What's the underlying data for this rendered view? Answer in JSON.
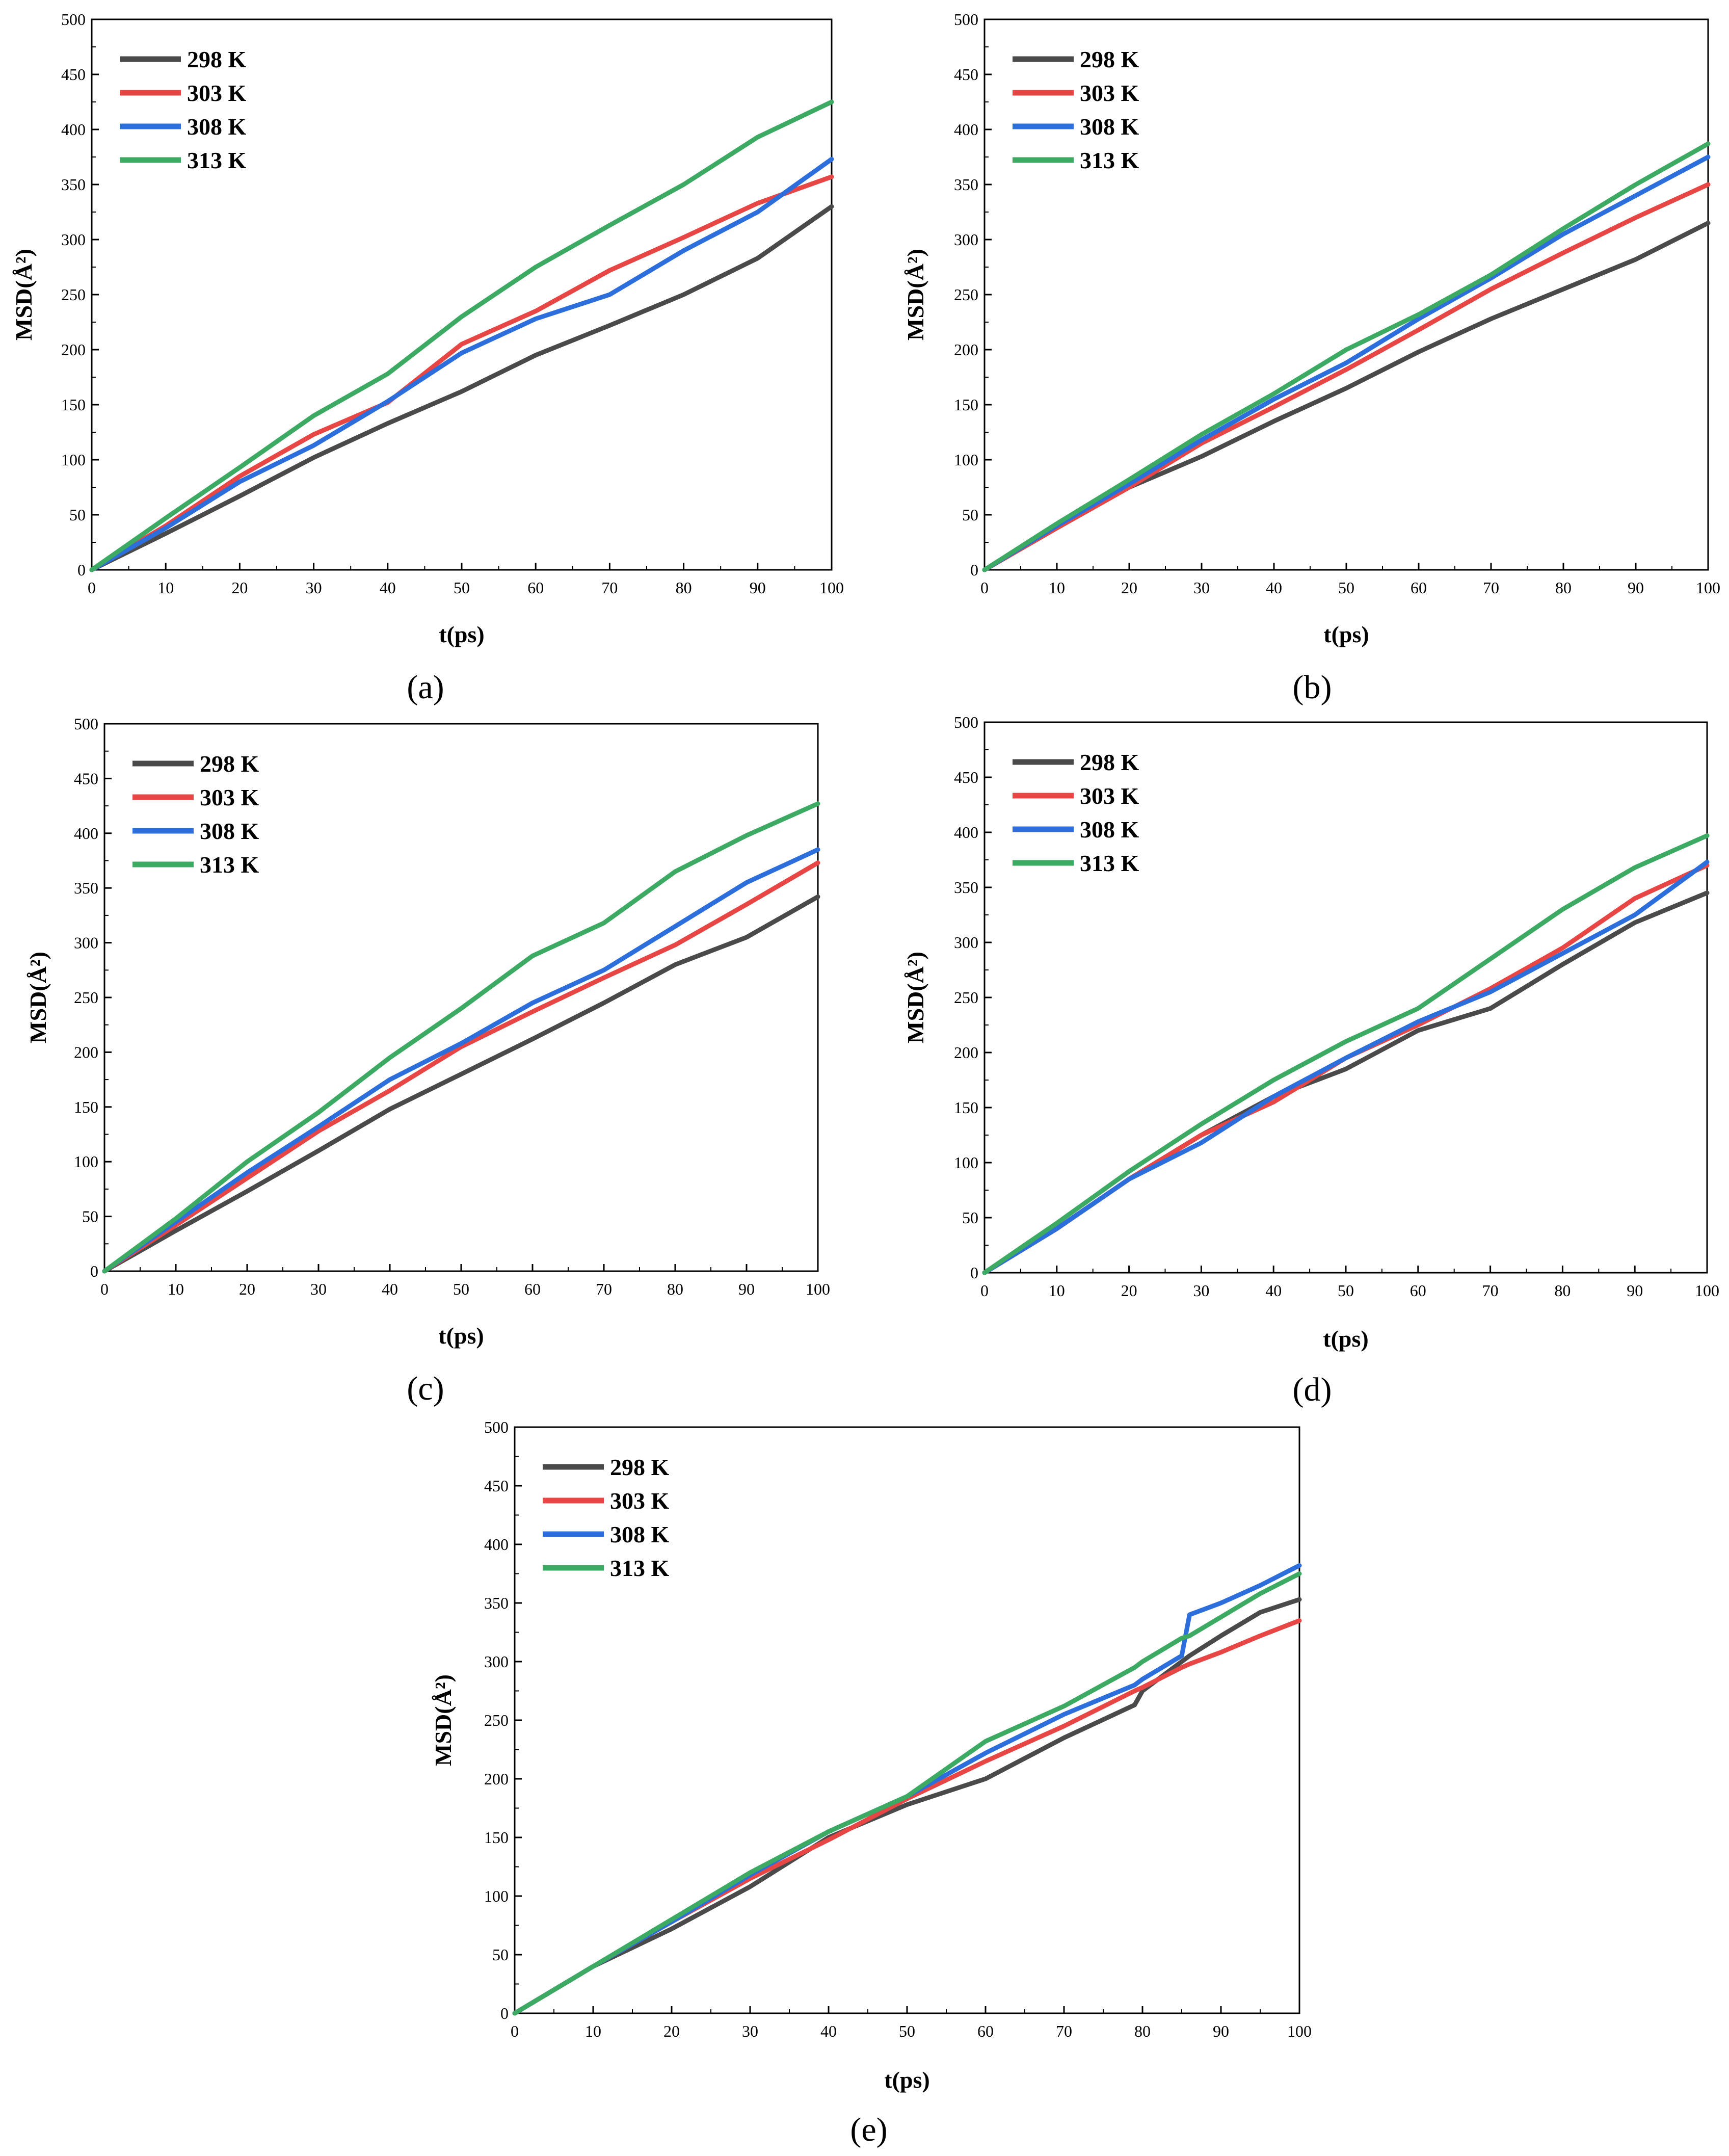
{
  "figure": {
    "series_colors": {
      "298 K": "#4a4a4a",
      "303 K": "#e84545",
      "308 K": "#2c6fdc",
      "313 K": "#3daa63"
    }
  },
  "chart_data": [
    {
      "id": "a",
      "type": "line",
      "panel_label": "(a)",
      "xlabel": "t(ps)",
      "ylabel": "MSD(Å²)",
      "xlim": [
        0,
        100
      ],
      "ylim": [
        0,
        500
      ],
      "xticks": [
        0,
        10,
        20,
        30,
        40,
        50,
        60,
        70,
        80,
        90,
        100
      ],
      "yticks": [
        0,
        50,
        100,
        150,
        200,
        250,
        300,
        350,
        400,
        450,
        500
      ],
      "legend": [
        "298 K",
        "303 K",
        "308 K",
        "313 K"
      ],
      "legend_position": "top-left",
      "x": [
        0,
        10,
        20,
        30,
        40,
        50,
        60,
        70,
        80,
        90,
        100
      ],
      "series": [
        {
          "name": "298 K",
          "values": [
            0,
            33,
            67,
            102,
            133,
            162,
            195,
            222,
            250,
            283,
            330
          ]
        },
        {
          "name": "303 K",
          "values": [
            0,
            40,
            85,
            123,
            152,
            205,
            235,
            272,
            302,
            333,
            357
          ]
        },
        {
          "name": "308 K",
          "values": [
            0,
            38,
            80,
            113,
            153,
            197,
            228,
            250,
            290,
            325,
            373
          ]
        },
        {
          "name": "313 K",
          "values": [
            0,
            47,
            93,
            140,
            178,
            230,
            275,
            313,
            350,
            393,
            425
          ]
        }
      ]
    },
    {
      "id": "b",
      "type": "line",
      "panel_label": "(b)",
      "xlabel": "t(ps)",
      "ylabel": "MSD(Å²)",
      "xlim": [
        0,
        100
      ],
      "ylim": [
        0,
        500
      ],
      "xticks": [
        0,
        10,
        20,
        30,
        40,
        50,
        60,
        70,
        80,
        90,
        100
      ],
      "yticks": [
        0,
        50,
        100,
        150,
        200,
        250,
        300,
        350,
        400,
        450,
        500
      ],
      "legend": [
        "298 K",
        "303 K",
        "308 K",
        "313 K"
      ],
      "legend_position": "top-left",
      "x": [
        0,
        10,
        20,
        30,
        40,
        50,
        60,
        70,
        80,
        90,
        100
      ],
      "series": [
        {
          "name": "298 K",
          "values": [
            0,
            38,
            75,
            103,
            135,
            165,
            198,
            228,
            255,
            282,
            315
          ]
        },
        {
          "name": "303 K",
          "values": [
            0,
            38,
            75,
            115,
            148,
            182,
            218,
            255,
            288,
            320,
            350
          ]
        },
        {
          "name": "308 K",
          "values": [
            0,
            40,
            78,
            118,
            155,
            188,
            228,
            265,
            305,
            340,
            375
          ]
        },
        {
          "name": "313 K",
          "values": [
            0,
            42,
            82,
            123,
            160,
            200,
            232,
            268,
            310,
            350,
            387
          ]
        }
      ]
    },
    {
      "id": "c",
      "type": "line",
      "panel_label": "(c)",
      "xlabel": "t(ps)",
      "ylabel": "MSD(Å²)",
      "xlim": [
        0,
        100
      ],
      "ylim": [
        0,
        500
      ],
      "xticks": [
        0,
        10,
        20,
        30,
        40,
        50,
        60,
        70,
        80,
        90,
        100
      ],
      "yticks": [
        0,
        50,
        100,
        150,
        200,
        250,
        300,
        350,
        400,
        450,
        500
      ],
      "legend": [
        "298 K",
        "303 K",
        "308 K",
        "313 K"
      ],
      "legend_position": "top-left",
      "x": [
        0,
        10,
        20,
        30,
        40,
        50,
        60,
        70,
        80,
        90,
        100
      ],
      "series": [
        {
          "name": "298 K",
          "values": [
            0,
            37,
            73,
            110,
            148,
            180,
            212,
            245,
            280,
            305,
            342
          ]
        },
        {
          "name": "303 K",
          "values": [
            0,
            42,
            85,
            128,
            165,
            205,
            237,
            268,
            298,
            335,
            373
          ]
        },
        {
          "name": "308 K",
          "values": [
            0,
            45,
            90,
            132,
            175,
            208,
            245,
            275,
            315,
            355,
            385
          ]
        },
        {
          "name": "313 K",
          "values": [
            0,
            48,
            100,
            145,
            195,
            240,
            288,
            318,
            365,
            398,
            427
          ]
        }
      ]
    },
    {
      "id": "d",
      "type": "line",
      "panel_label": "(d)",
      "xlabel": "t(ps)",
      "ylabel": "MSD(Å²)",
      "xlim": [
        0,
        100
      ],
      "ylim": [
        0,
        500
      ],
      "xticks": [
        0,
        10,
        20,
        30,
        40,
        50,
        60,
        70,
        80,
        90,
        100
      ],
      "yticks": [
        0,
        50,
        100,
        150,
        200,
        250,
        300,
        350,
        400,
        450,
        500
      ],
      "legend": [
        "298 K",
        "303 K",
        "308 K",
        "313 K"
      ],
      "legend_position": "top-left",
      "x": [
        0,
        10,
        20,
        30,
        40,
        50,
        60,
        70,
        80,
        90,
        100
      ],
      "series": [
        {
          "name": "298 K",
          "values": [
            0,
            40,
            85,
            125,
            160,
            185,
            220,
            240,
            280,
            318,
            345
          ]
        },
        {
          "name": "303 K",
          "values": [
            0,
            40,
            85,
            125,
            155,
            195,
            225,
            258,
            295,
            340,
            370
          ]
        },
        {
          "name": "308 K",
          "values": [
            0,
            40,
            85,
            118,
            160,
            195,
            228,
            255,
            290,
            325,
            373
          ]
        },
        {
          "name": "313 K",
          "values": [
            0,
            45,
            92,
            135,
            175,
            210,
            240,
            285,
            330,
            368,
            397
          ]
        }
      ]
    },
    {
      "id": "e",
      "type": "line",
      "panel_label": "(e)",
      "xlabel": "t(ps)",
      "ylabel": "MSD(Å²)",
      "xlim": [
        0,
        100
      ],
      "ylim": [
        0,
        500
      ],
      "xticks": [
        0,
        10,
        20,
        30,
        40,
        50,
        60,
        70,
        80,
        90,
        100
      ],
      "yticks": [
        0,
        50,
        100,
        150,
        200,
        250,
        300,
        350,
        400,
        450,
        500
      ],
      "legend": [
        "298 K",
        "303 K",
        "308 K",
        "313 K"
      ],
      "legend_position": "top-left",
      "x": [
        0,
        10,
        20,
        30,
        40,
        50,
        60,
        70,
        79,
        80,
        85,
        86,
        90,
        95,
        100
      ],
      "series": [
        {
          "name": "298 K",
          "values": [
            0,
            40,
            72,
            108,
            150,
            178,
            200,
            235,
            263,
            275,
            300,
            305,
            322,
            342,
            353
          ]
        },
        {
          "name": "303 K",
          "values": [
            0,
            40,
            78,
            115,
            148,
            183,
            215,
            245,
            275,
            278,
            295,
            298,
            308,
            322,
            335
          ]
        },
        {
          "name": "308 K",
          "values": [
            0,
            40,
            78,
            118,
            155,
            185,
            222,
            255,
            280,
            285,
            305,
            340,
            350,
            365,
            382
          ]
        },
        {
          "name": "313 K",
          "values": [
            0,
            40,
            80,
            120,
            155,
            185,
            232,
            262,
            295,
            300,
            320,
            322,
            338,
            358,
            375
          ]
        }
      ]
    }
  ]
}
